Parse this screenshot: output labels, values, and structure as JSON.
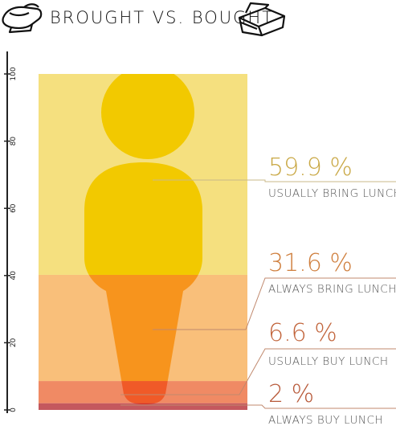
{
  "header": {
    "title": "BROUGHT VS. BOUGHT",
    "left_icon": "lunch-bag-icon",
    "right_icon": "lunch-box-icon"
  },
  "chart_data": {
    "type": "area",
    "title": "BROUGHT VS. BOUGHT",
    "ylim": [
      0,
      100
    ],
    "y_ticks": [
      "0",
      "20",
      "40",
      "60",
      "80",
      "100"
    ],
    "categories": [
      "ALWAYS BUY LUNCH",
      "USUALLY BUY LUNCH",
      "ALWAYS BRING LUNCH",
      "USUALLY BRING LUNCH"
    ],
    "values": [
      2,
      6.6,
      31.6,
      59.9
    ],
    "value_labels": [
      "2 %",
      "6.6 %",
      "31.6 %",
      "59.9 %"
    ],
    "colors": [
      "#c4585e",
      "#f08a64",
      "#f9bf7a",
      "#f5e07f"
    ],
    "label_colors": [
      "#b85a3a",
      "#c2653c",
      "#cf7e3c",
      "#c9a845"
    ],
    "figure_colors": [
      "#d23226",
      "#f05a28",
      "#f7941d",
      "#f2c900"
    ]
  }
}
